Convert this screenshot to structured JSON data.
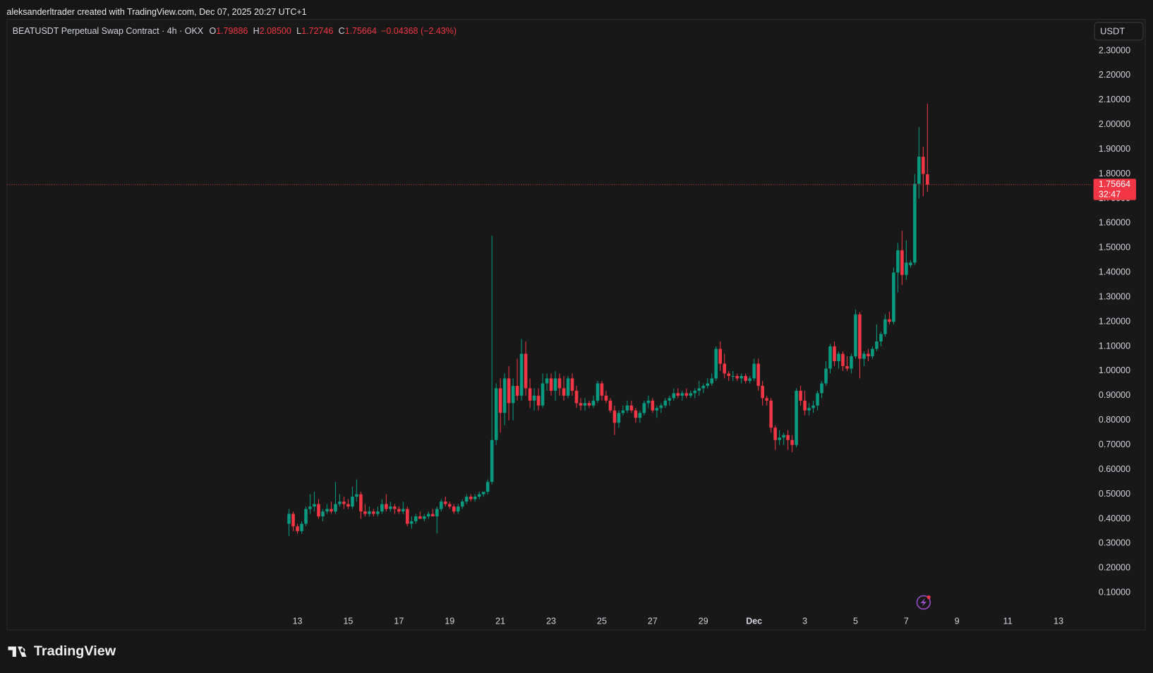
{
  "attribution": "aleksanderltrader created with TradingView.com, Dec 07, 2025 20:27 UTC+1",
  "brand": "TradingView",
  "currency": "USDT",
  "chart_data": {
    "type": "candlestick",
    "title": "BEATUSDT Perpetual Swap Contract · 4h · OKX",
    "ohlc": [
      {
        "key": "O",
        "value": "1.79886"
      },
      {
        "key": "H",
        "value": "2.08500"
      },
      {
        "key": "L",
        "value": "1.72746"
      },
      {
        "key": "C",
        "value": "1.75664"
      }
    ],
    "change": "−0.04368 (−2.43%)",
    "last_price": 1.75664,
    "countdown": "32:47",
    "up_color": "#089981",
    "down_color": "#f23645",
    "grid": false,
    "categories": [
      null,
      null,
      "13",
      null,
      null,
      null,
      null,
      null,
      null,
      null,
      null,
      null,
      null,
      null,
      "15",
      null,
      null,
      null,
      null,
      null,
      null,
      null,
      null,
      null,
      null,
      null,
      "17",
      null,
      null,
      null,
      null,
      null,
      null,
      null,
      null,
      null,
      null,
      null,
      "19",
      null,
      null,
      null,
      null,
      null,
      null,
      null,
      null,
      null,
      null,
      null,
      "21",
      null,
      null,
      null,
      null,
      null,
      null,
      null,
      null,
      null,
      null,
      null,
      "23",
      null,
      null,
      null,
      null,
      null,
      null,
      null,
      null,
      null,
      null,
      null,
      "25",
      null,
      null,
      null,
      null,
      null,
      null,
      null,
      null,
      null,
      null,
      null,
      "27",
      null,
      null,
      null,
      null,
      null,
      null,
      null,
      null,
      null,
      null,
      null,
      "29",
      null,
      null,
      null,
      null,
      null,
      null,
      null,
      null,
      null,
      null,
      null,
      "Dec",
      null,
      null,
      null,
      null,
      null,
      null,
      null,
      null,
      null,
      null,
      null,
      "3",
      null,
      null,
      null,
      null,
      null,
      null,
      null,
      null,
      null,
      null,
      null,
      "5",
      null,
      null,
      null,
      null,
      null,
      null,
      null,
      null,
      null,
      null,
      null,
      "7",
      null,
      null,
      null,
      null,
      null,
      null,
      null,
      null,
      null,
      null,
      null,
      "9",
      null,
      null,
      null,
      null,
      null,
      null,
      null,
      null,
      null,
      null,
      null,
      "11",
      null,
      null,
      null,
      null,
      null,
      null,
      null,
      null,
      null,
      null,
      null,
      "13",
      null,
      null,
      null,
      null,
      null
    ],
    "open": [
      0.38,
      0.42,
      0.37,
      0.35,
      0.38,
      0.44,
      0.45,
      0.46,
      0.41,
      0.43,
      0.44,
      0.43,
      0.46,
      0.47,
      0.46,
      0.45,
      0.49,
      0.5,
      0.43,
      0.42,
      0.43,
      0.42,
      0.43,
      0.46,
      0.44,
      0.45,
      0.44,
      0.43,
      0.44,
      0.38,
      0.39,
      0.41,
      0.4,
      0.41,
      0.42,
      0.41,
      0.44,
      0.47,
      0.46,
      0.45,
      0.43,
      0.45,
      0.47,
      0.49,
      0.48,
      0.49,
      0.5,
      0.51,
      0.55,
      0.72,
      0.93,
      0.83,
      0.97,
      0.87,
      0.94,
      0.9,
      1.07,
      0.93,
      0.88,
      0.9,
      0.86,
      0.95,
      0.97,
      0.92,
      0.97,
      0.93,
      0.9,
      0.97,
      0.92,
      0.87,
      0.86,
      0.87,
      0.86,
      0.88,
      0.95,
      0.9,
      0.88,
      0.84,
      0.79,
      0.83,
      0.84,
      0.86,
      0.84,
      0.81,
      0.83,
      0.87,
      0.88,
      0.84,
      0.85,
      0.86,
      0.88,
      0.89,
      0.91,
      0.9,
      0.91,
      0.9,
      0.91,
      0.92,
      0.93,
      0.94,
      0.95,
      0.97,
      1.09,
      1.03,
      0.99,
      0.98,
      0.98,
      0.97,
      0.98,
      0.96,
      0.97,
      1.03,
      0.94,
      0.89,
      0.88,
      0.77,
      0.72,
      0.73,
      0.74,
      0.72,
      0.7,
      0.92,
      0.88,
      0.84,
      0.85,
      0.86,
      0.91,
      0.95,
      1.01,
      1.1,
      1.04,
      1.07,
      1.02,
      1.01,
      1.06,
      1.23,
      1.05,
      1.07,
      1.06,
      1.09,
      1.12,
      1.15,
      1.21,
      1.2,
      1.4,
      1.49,
      1.39,
      1.43,
      1.44,
      1.76,
      1.87,
      1.79886,
      null,
      null,
      null,
      null,
      null,
      null,
      null,
      null,
      null,
      null,
      null,
      null,
      null,
      null,
      null,
      null,
      null,
      null,
      null,
      null,
      null,
      null,
      null,
      null,
      null,
      null,
      null,
      null,
      null,
      null,
      null,
      null,
      null,
      null,
      null,
      null
    ],
    "high": [
      0.44,
      0.43,
      0.38,
      0.39,
      0.45,
      0.5,
      0.51,
      0.48,
      0.44,
      0.46,
      0.47,
      0.55,
      0.5,
      0.49,
      0.48,
      0.53,
      0.56,
      0.51,
      0.46,
      0.45,
      0.44,
      0.45,
      0.48,
      0.5,
      0.47,
      0.46,
      0.45,
      0.47,
      0.45,
      0.41,
      0.42,
      0.43,
      0.42,
      0.43,
      0.44,
      0.45,
      0.48,
      0.49,
      0.47,
      0.46,
      0.46,
      0.48,
      0.5,
      0.5,
      0.5,
      0.51,
      0.51,
      0.56,
      1.55,
      0.95,
      0.97,
      0.99,
      1.02,
      0.97,
      1.05,
      1.13,
      1.12,
      0.97,
      0.93,
      0.93,
      0.99,
      0.99,
      0.99,
      1.0,
      0.99,
      0.98,
      0.98,
      0.99,
      0.94,
      0.89,
      0.89,
      0.88,
      0.9,
      0.96,
      0.96,
      0.92,
      0.89,
      0.86,
      0.84,
      0.86,
      0.88,
      0.88,
      0.85,
      0.84,
      0.88,
      0.9,
      0.89,
      0.86,
      0.87,
      0.89,
      0.9,
      0.93,
      0.93,
      0.92,
      0.93,
      0.92,
      0.93,
      0.96,
      0.95,
      0.97,
      0.99,
      1.1,
      1.12,
      1.07,
      1.0,
      1.0,
      0.99,
      0.99,
      0.99,
      0.98,
      1.05,
      1.05,
      0.96,
      0.9,
      0.89,
      0.78,
      0.76,
      0.75,
      0.76,
      0.74,
      0.93,
      0.94,
      0.92,
      0.87,
      0.88,
      0.92,
      0.96,
      1.04,
      1.11,
      1.12,
      1.08,
      1.08,
      1.06,
      1.07,
      1.25,
      1.24,
      1.08,
      1.09,
      1.1,
      1.19,
      1.16,
      1.23,
      1.24,
      1.42,
      1.52,
      1.57,
      1.53,
      1.45,
      1.8,
      1.99,
      1.91,
      2.085,
      null,
      null,
      null,
      null,
      null,
      null,
      null,
      null,
      null,
      null,
      null,
      null,
      null,
      null,
      null,
      null,
      null,
      null,
      null,
      null,
      null,
      null,
      null,
      null,
      null,
      null,
      null,
      null,
      null,
      null,
      null,
      null,
      null,
      null,
      null,
      null
    ],
    "low": [
      0.33,
      0.35,
      0.34,
      0.34,
      0.37,
      0.42,
      0.43,
      0.4,
      0.39,
      0.42,
      0.42,
      0.42,
      0.45,
      0.44,
      0.44,
      0.44,
      0.47,
      0.4,
      0.41,
      0.41,
      0.41,
      0.41,
      0.42,
      0.43,
      0.43,
      0.42,
      0.42,
      0.42,
      0.37,
      0.36,
      0.38,
      0.4,
      0.39,
      0.4,
      0.41,
      0.34,
      0.43,
      0.45,
      0.44,
      0.42,
      0.42,
      0.44,
      0.46,
      0.47,
      0.47,
      0.48,
      0.49,
      0.5,
      0.54,
      0.7,
      0.75,
      0.78,
      0.8,
      0.8,
      0.88,
      0.88,
      0.9,
      0.85,
      0.84,
      0.84,
      0.85,
      0.92,
      0.9,
      0.88,
      0.9,
      0.88,
      0.89,
      0.9,
      0.85,
      0.84,
      0.84,
      0.85,
      0.85,
      0.87,
      0.88,
      0.87,
      0.83,
      0.74,
      0.77,
      0.82,
      0.83,
      0.83,
      0.79,
      0.79,
      0.82,
      0.85,
      0.83,
      0.81,
      0.83,
      0.85,
      0.86,
      0.88,
      0.89,
      0.88,
      0.89,
      0.89,
      0.89,
      0.9,
      0.91,
      0.93,
      0.94,
      0.96,
      1.0,
      0.97,
      0.96,
      0.96,
      0.96,
      0.95,
      0.95,
      0.95,
      0.96,
      0.92,
      0.86,
      0.86,
      0.75,
      0.68,
      0.7,
      0.7,
      0.68,
      0.67,
      0.69,
      0.86,
      0.82,
      0.82,
      0.83,
      0.84,
      0.89,
      0.94,
      0.99,
      1.02,
      1.01,
      1.0,
      1.0,
      0.99,
      1.05,
      0.97,
      1.02,
      1.04,
      1.05,
      1.08,
      1.1,
      1.14,
      1.19,
      1.19,
      1.32,
      1.35,
      1.37,
      1.42,
      1.43,
      1.7,
      1.71,
      1.72746,
      null,
      null,
      null,
      null,
      null,
      null,
      null,
      null,
      null,
      null,
      null,
      null,
      null,
      null,
      null,
      null,
      null,
      null,
      null,
      null,
      null,
      null,
      null,
      null,
      null,
      null,
      null,
      null,
      null,
      null,
      null,
      null,
      null,
      null,
      null,
      null
    ],
    "close": [
      0.42,
      0.37,
      0.35,
      0.38,
      0.44,
      0.45,
      0.46,
      0.41,
      0.43,
      0.44,
      0.43,
      0.46,
      0.47,
      0.46,
      0.45,
      0.49,
      0.5,
      0.43,
      0.42,
      0.43,
      0.42,
      0.43,
      0.46,
      0.44,
      0.45,
      0.44,
      0.43,
      0.44,
      0.38,
      0.39,
      0.41,
      0.4,
      0.41,
      0.42,
      0.41,
      0.44,
      0.47,
      0.46,
      0.45,
      0.43,
      0.45,
      0.47,
      0.49,
      0.48,
      0.49,
      0.5,
      0.51,
      0.55,
      0.72,
      0.93,
      0.83,
      0.97,
      0.87,
      0.94,
      0.9,
      1.07,
      0.93,
      0.88,
      0.9,
      0.86,
      0.95,
      0.97,
      0.92,
      0.97,
      0.93,
      0.9,
      0.97,
      0.92,
      0.87,
      0.86,
      0.87,
      0.86,
      0.88,
      0.95,
      0.9,
      0.88,
      0.84,
      0.79,
      0.83,
      0.84,
      0.86,
      0.84,
      0.81,
      0.83,
      0.87,
      0.88,
      0.84,
      0.85,
      0.86,
      0.88,
      0.89,
      0.91,
      0.9,
      0.91,
      0.9,
      0.91,
      0.92,
      0.93,
      0.94,
      0.95,
      0.97,
      1.09,
      1.03,
      0.99,
      0.98,
      0.98,
      0.97,
      0.98,
      0.96,
      0.97,
      1.03,
      0.94,
      0.89,
      0.88,
      0.77,
      0.72,
      0.73,
      0.74,
      0.72,
      0.7,
      0.92,
      0.88,
      0.84,
      0.85,
      0.86,
      0.91,
      0.95,
      1.01,
      1.1,
      1.04,
      1.07,
      1.02,
      1.01,
      1.06,
      1.23,
      1.05,
      1.07,
      1.06,
      1.09,
      1.12,
      1.15,
      1.21,
      1.2,
      1.4,
      1.49,
      1.39,
      1.44,
      1.44,
      1.76,
      1.87,
      1.8,
      1.75664,
      null,
      null,
      null,
      null,
      null,
      null,
      null,
      null,
      null,
      null,
      null,
      null,
      null,
      null,
      null,
      null,
      null,
      null,
      null,
      null,
      null,
      null,
      null,
      null,
      null,
      null,
      null,
      null,
      null,
      null,
      null,
      null,
      null,
      null,
      null,
      null
    ],
    "ylim": [
      0.028,
      2.342
    ],
    "yticks": [
      {
        "value": 0.1,
        "label": "0.10000"
      },
      {
        "value": 0.2,
        "label": "0.20000"
      },
      {
        "value": 0.3,
        "label": "0.30000"
      },
      {
        "value": 0.4,
        "label": "0.40000"
      },
      {
        "value": 0.5,
        "label": "0.50000"
      },
      {
        "value": 0.6,
        "label": "0.60000"
      },
      {
        "value": 0.7,
        "label": "0.70000"
      },
      {
        "value": 0.8,
        "label": "0.80000"
      },
      {
        "value": 0.9,
        "label": "0.90000"
      },
      {
        "value": 1.0,
        "label": "1.00000"
      },
      {
        "value": 1.1,
        "label": "1.10000"
      },
      {
        "value": 1.2,
        "label": "1.20000"
      },
      {
        "value": 1.3,
        "label": "1.30000"
      },
      {
        "value": 1.4,
        "label": "1.40000"
      },
      {
        "value": 1.5,
        "label": "1.50000"
      },
      {
        "value": 1.6,
        "label": "1.60000"
      },
      {
        "value": 1.7,
        "label": "1.70000"
      },
      {
        "value": 1.8,
        "label": "1.80000"
      },
      {
        "value": 1.9,
        "label": "1.90000"
      },
      {
        "value": 2.0,
        "label": "2.00000"
      },
      {
        "value": 2.1,
        "label": "2.10000"
      },
      {
        "value": 2.2,
        "label": "2.20000"
      },
      {
        "value": 2.3,
        "label": "2.30000"
      }
    ]
  }
}
